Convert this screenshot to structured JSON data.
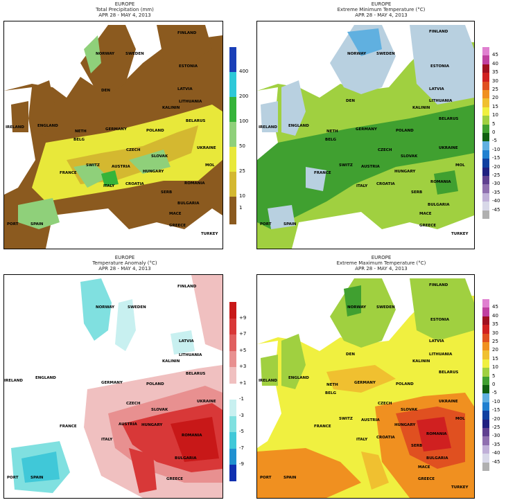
{
  "panels": [
    {
      "region": "EUROPE",
      "title": "Total Precipitation (mm)",
      "dates": "APR 28 - MAY 4, 2013",
      "legend": {
        "labels": [
          "400",
          "200",
          "100",
          "50",
          "25",
          "10",
          "1"
        ],
        "colors": [
          "#1a3fb8",
          "#2ec8d8",
          "#35b43a",
          "#8fd07a",
          "#e8e83a",
          "#d4b830",
          "#8b5a1f"
        ]
      },
      "countries": [
        "FINLAND",
        "NORWAY",
        "SWEDEN",
        "ESTONIA",
        "LATVIA",
        "DEN",
        "LITHUANIA",
        "KALININ",
        "IRELAND",
        "ENGLAND",
        "NETH",
        "BELG",
        "GERMANY",
        "POLAND",
        "BELARUS",
        "CZECH",
        "SLOVAK",
        "UKRAINE",
        "FRANCE",
        "SWITZ",
        "AUSTRIA",
        "HUNGARY",
        "ROMANIA",
        "ITALY",
        "CROATIA",
        "SERB",
        "BULGARIA",
        "SPAIN",
        "PORT",
        "MACE",
        "GREECE",
        "TURKEY",
        "MOL"
      ]
    },
    {
      "region": "EUROPE",
      "title": "Extreme Minimum Temperature (°C)",
      "dates": "APR 28 - MAY 4, 2013",
      "legend": {
        "labels": [
          "45",
          "40",
          "35",
          "30",
          "25",
          "20",
          "15",
          "10",
          "5",
          "0",
          "-5",
          "-10",
          "-15",
          "-20",
          "-25",
          "-30",
          "-35",
          "-40",
          "-45"
        ],
        "colors": [
          "#e080d0",
          "#c040a0",
          "#a01020",
          "#d02020",
          "#e05020",
          "#f09020",
          "#f0c030",
          "#f0f040",
          "#a0d040",
          "#40a030",
          "#106010",
          "#60b0e0",
          "#2080d0",
          "#1040a0",
          "#202080",
          "#604090",
          "#9070b0",
          "#c0b0d8",
          "#d8d8e8",
          "#b0b0b0"
        ]
      },
      "countries": [
        "FINLAND",
        "NORWAY",
        "SWEDEN",
        "ESTONIA",
        "LATVIA",
        "DEN",
        "LITHUANIA",
        "KALININ",
        "IRELAND",
        "ENGLAND",
        "NETH",
        "BELG",
        "GERMANY",
        "POLAND",
        "BELARUS",
        "CZECH",
        "SLOVAK",
        "UKRAINE",
        "FRANCE",
        "SWITZ",
        "AUSTRIA",
        "HUNGARY",
        "ROMANIA",
        "ITALY",
        "CROATIA",
        "SERB",
        "BULGARIA",
        "SPAIN",
        "PORT",
        "MACE",
        "GREECE",
        "TURKEY",
        "MOL"
      ]
    },
    {
      "region": "EUROPE",
      "title": "Temperature Anomaly (°C)",
      "dates": "APR 28 - MAY 4, 2013",
      "legend": {
        "labels": [
          "+9",
          "+7",
          "+5",
          "+3",
          "+1",
          "-1",
          "-3",
          "-5",
          "-7",
          "-9"
        ],
        "colors": [
          "#c81818",
          "#d83838",
          "#e06060",
          "#e89090",
          "#f0c0c0",
          "#ffffff",
          "#c8f0f0",
          "#80e0e0",
          "#40c8d8",
          "#2090d0",
          "#1030b0"
        ]
      },
      "countries": [
        "FINLAND",
        "NORWAY",
        "SWEDEN",
        "LATVIA",
        "LITHUANIA",
        "KALININ",
        "IRELAND",
        "ENGLAND",
        "GERMANY",
        "POLAND",
        "BELARUS",
        "CZECH",
        "SLOVAK",
        "UKRAINE",
        "FRANCE",
        "AUSTRIA",
        "HUNGARY",
        "ROMANIA",
        "ITALY",
        "BULGARIA",
        "GREECE",
        "SPAIN",
        "PORT"
      ]
    },
    {
      "region": "EUROPE",
      "title": "Extreme Maximum Temperature (°C)",
      "dates": "APR 28 - MAY 4, 2013",
      "legend": {
        "labels": [
          "45",
          "40",
          "35",
          "30",
          "25",
          "20",
          "15",
          "10",
          "5",
          "0",
          "-5",
          "-10",
          "-15",
          "-20",
          "-25",
          "-30",
          "-35",
          "-40",
          "-45"
        ],
        "colors": [
          "#e080d0",
          "#c040a0",
          "#a01020",
          "#d02020",
          "#e05020",
          "#f09020",
          "#f0c030",
          "#f0f040",
          "#a0d040",
          "#40a030",
          "#106010",
          "#60b0e0",
          "#2080d0",
          "#1040a0",
          "#202080",
          "#604090",
          "#9070b0",
          "#c0b0d8",
          "#d8d8e8",
          "#b0b0b0"
        ]
      },
      "countries": [
        "FINLAND",
        "NORWAY",
        "SWEDEN",
        "ESTONIA",
        "LATVIA",
        "DEN",
        "LITHUANIA",
        "KALININ",
        "IRELAND",
        "ENGLAND",
        "NETH",
        "BELG",
        "GERMANY",
        "POLAND",
        "BELARUS",
        "CZECH",
        "SLOVAK",
        "UKRAINE",
        "FRANCE",
        "SWITZ",
        "AUSTRIA",
        "HUNGARY",
        "ROMANIA",
        "ITALY",
        "CROATIA",
        "SERB",
        "BULGARIA",
        "SPAIN",
        "PORT",
        "MACE",
        "GREECE",
        "TURKEY",
        "MOL"
      ]
    }
  ]
}
